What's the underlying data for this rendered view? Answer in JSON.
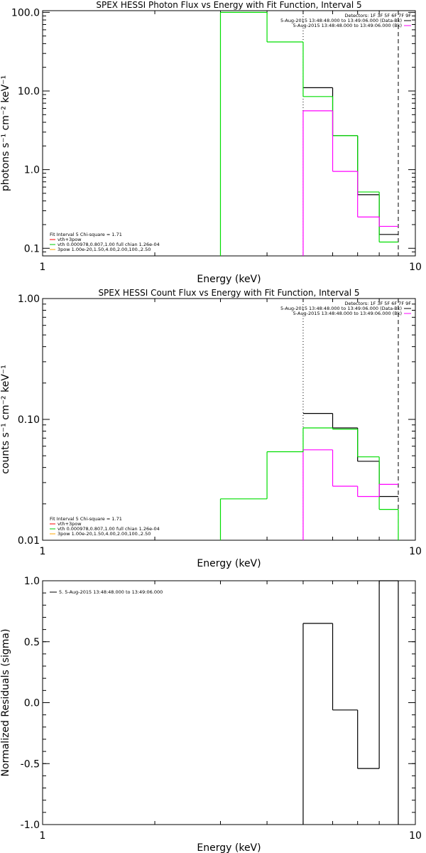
{
  "chart_data": [
    {
      "id": "photon",
      "type": "line",
      "title": "SPEX HESSI Photon Flux vs Energy with Fit Function, Interval 5",
      "xlabel": "Energy (keV)",
      "ylabel": "photons s⁻¹ cm⁻² keV⁻¹",
      "xscale": "log",
      "yscale": "log",
      "xlim": [
        1,
        10
      ],
      "ylim": [
        0.08,
        105
      ],
      "xticks": [
        {
          "v": 1,
          "label": "1"
        },
        {
          "v": 10,
          "label": "10"
        }
      ],
      "yticks": [
        {
          "v": 0.1,
          "label": "0.1"
        },
        {
          "v": 1,
          "label": "1.0"
        },
        {
          "v": 10,
          "label": "10.0"
        },
        {
          "v": 100,
          "label": "100.0"
        }
      ],
      "vlines": [
        {
          "x": 5,
          "style": "dotted"
        },
        {
          "x": 9,
          "style": "dashed"
        }
      ],
      "info_lines": [
        "Detectors: 1F 3F 5F 6F 7F 9F",
        "5-Aug-2015 13:48:48.000 to 13:49:06.000 (Data-Bk)",
        "5-Aug-2015 13:48:48.000 to 13:49:06.000 (Bk)"
      ],
      "info_colors": [
        "#000000",
        "#ff00ff"
      ],
      "legend_lines": [
        "Fit Interval 5    Chi-square = 1.71",
        "vth+3pow",
        "vth 0.000978,0.807,1.00  full chian 1.26e-04",
        "3pow 1.00e-20,1.50,4.00,2.00,100.,2.50"
      ],
      "legend_colors": [
        "#ff0000",
        "#00cc00",
        "#ffa500"
      ],
      "series": [
        {
          "name": "Data-Bk",
          "color": "#000000",
          "edges": [
            5,
            6,
            7,
            8,
            9
          ],
          "values": [
            11,
            2.7,
            0.48,
            0.15
          ]
        },
        {
          "name": "Fit",
          "color": "#00dd00",
          "edges": [
            3,
            4,
            5,
            6,
            7,
            8,
            9
          ],
          "values": [
            100,
            42,
            8.5,
            2.7,
            0.52,
            0.12
          ]
        },
        {
          "name": "Bk",
          "color": "#ff00ff",
          "edges": [
            5,
            6,
            7,
            8,
            9
          ],
          "values": [
            5.6,
            0.95,
            0.25,
            0.19
          ]
        }
      ],
      "drops": [
        {
          "x": 3,
          "color": "#00dd00"
        },
        {
          "x": 5,
          "color": "#ff00ff"
        }
      ]
    },
    {
      "id": "count",
      "type": "line",
      "title": "SPEX HESSI Count Flux vs Energy with Fit Function, Interval 5",
      "xlabel": "Energy (keV)",
      "ylabel": "counts s⁻¹ cm⁻² keV⁻¹",
      "xscale": "log",
      "yscale": "log",
      "xlim": [
        1,
        10
      ],
      "ylim": [
        0.01,
        1.0
      ],
      "xticks": [
        {
          "v": 1,
          "label": "1"
        },
        {
          "v": 10,
          "label": "10"
        }
      ],
      "yticks": [
        {
          "v": 0.01,
          "label": "0.01"
        },
        {
          "v": 0.1,
          "label": "0.10"
        },
        {
          "v": 1,
          "label": "1.00"
        }
      ],
      "vlines": [
        {
          "x": 5,
          "style": "dotted"
        },
        {
          "x": 9,
          "style": "dashed"
        }
      ],
      "info_lines": [
        "Detectors: 1F 3F 5F 6F 7F 9F",
        "5-Aug-2015 13:48:48.000 to 13:49:06.000 (Data-Bk)",
        "5-Aug-2015 13:48:48.000 to 13:49:06.000 (Bk)"
      ],
      "info_colors": [
        "#000000",
        "#ff00ff"
      ],
      "legend_lines": [
        "Fit Interval 5    Chi-square = 1.71",
        "vth+3pow",
        "vth 0.000978,0.807,1.00  full chian 1.26e-04",
        "3pow 1.00e-20,1.50,4.00,2.00,100.,2.50"
      ],
      "legend_colors": [
        "#ff0000",
        "#00cc00",
        "#ffa500"
      ],
      "series": [
        {
          "name": "Data-Bk",
          "color": "#000000",
          "edges": [
            5,
            6,
            7,
            8,
            9
          ],
          "values": [
            0.112,
            0.085,
            0.045,
            0.023
          ]
        },
        {
          "name": "Fit",
          "color": "#00dd00",
          "edges": [
            3,
            4,
            5,
            6,
            7,
            8,
            9
          ],
          "values": [
            0.022,
            0.054,
            0.085,
            0.083,
            0.049,
            0.018
          ]
        },
        {
          "name": "Bk",
          "color": "#ff00ff",
          "edges": [
            5,
            6,
            7,
            8,
            9
          ],
          "values": [
            0.056,
            0.028,
            0.023,
            0.029
          ]
        }
      ],
      "drops": [
        {
          "x": 3,
          "color": "#00dd00"
        },
        {
          "x": 5,
          "color": "#ff00ff"
        },
        {
          "x": 9,
          "color": "#00dd00"
        }
      ]
    },
    {
      "id": "resid",
      "type": "line",
      "title": "",
      "xlabel": "Energy (keV)",
      "ylabel": "Normalized Residuals (sigma)",
      "xscale": "log",
      "yscale": "linear",
      "xlim": [
        1,
        10
      ],
      "ylim": [
        -1.0,
        1.0
      ],
      "xticks": [
        {
          "v": 1,
          "label": "1"
        },
        {
          "v": 10,
          "label": "10"
        }
      ],
      "yticks": [
        {
          "v": -1,
          "label": "-1.0"
        },
        {
          "v": -0.5,
          "label": "-0.5"
        },
        {
          "v": 0,
          "label": "0.0"
        },
        {
          "v": 0.5,
          "label": "0.5"
        },
        {
          "v": 1,
          "label": "1.0"
        }
      ],
      "vlines": [],
      "info_lines": [],
      "legend_lines": [],
      "resid_legend": "5.  5-Aug-2015 13:48:48.000 to 13:49:06.000",
      "series": [
        {
          "name": "5-Aug-2015 13:48:48.000 to 13:49:06.000",
          "color": "#000000",
          "edges": [
            5,
            6,
            7,
            8,
            9
          ],
          "values": [
            0.65,
            -0.06,
            -0.54,
            1.0
          ],
          "closed": true
        }
      ],
      "drops": []
    }
  ]
}
